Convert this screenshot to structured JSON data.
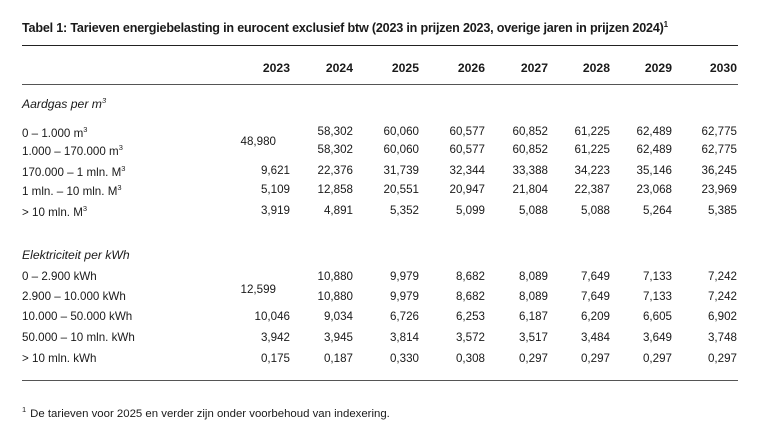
{
  "title": "Tabel 1: Tarieven energiebelasting in eurocent exclusief btw (2023 in prijzen 2023, overige jaren in prijzen 2024)",
  "title_sup": "1",
  "years": [
    "2023",
    "2024",
    "2025",
    "2026",
    "2027",
    "2028",
    "2029",
    "2030"
  ],
  "gas": {
    "heading": "Aardgas per m",
    "heading_sup": "3",
    "rows": [
      {
        "label": "0 – 1.000 m",
        "sup": "3",
        "values": [
          "",
          "58,302",
          "60,060",
          "60,577",
          "60,852",
          "61,225",
          "62,489",
          "62,775"
        ]
      },
      {
        "label": "1.000 – 170.000 m",
        "sup": "3",
        "values": [
          "",
          "58,302",
          "60,060",
          "60,577",
          "60,852",
          "61,225",
          "62,489",
          "62,775"
        ]
      },
      {
        "label": "170.000 – 1 mln. M",
        "sup": "3",
        "values": [
          "9,621",
          "22,376",
          "31,739",
          "32,344",
          "33,388",
          "34,223",
          "35,146",
          "36,245"
        ]
      },
      {
        "label": "1 mln. – 10 mln. M",
        "sup": "3",
        "values": [
          "5,109",
          "12,858",
          "20,551",
          "20,947",
          "21,804",
          "22,387",
          "23,068",
          "23,969"
        ]
      },
      {
        "label": "> 10 mln. M",
        "sup": "3",
        "values": [
          "3,919",
          "4,891",
          "5,352",
          "5,099",
          "5,088",
          "5,088",
          "5,264",
          "5,385"
        ]
      }
    ],
    "merged_2023": "48,980"
  },
  "elec": {
    "heading": "Elektriciteit per kWh",
    "rows": [
      {
        "label": "0 – 2.900 kWh",
        "values": [
          "",
          "10,880",
          "9,979",
          "8,682",
          "8,089",
          "7,649",
          "7,133",
          "7,242"
        ]
      },
      {
        "label": "2.900 – 10.000 kWh",
        "values": [
          "",
          "10,880",
          "9,979",
          "8,682",
          "8,089",
          "7,649",
          "7,133",
          "7,242"
        ]
      },
      {
        "label": "10.000 – 50.000 kWh",
        "values": [
          "10,046",
          "9,034",
          "6,726",
          "6,253",
          "6,187",
          "6,209",
          "6,605",
          "6,902"
        ]
      },
      {
        "label": "50.000 – 10 mln. kWh",
        "values": [
          "3,942",
          "3,945",
          "3,814",
          "3,572",
          "3,517",
          "3,484",
          "3,649",
          "3,748"
        ]
      },
      {
        "label": "> 10 mln. kWh",
        "values": [
          "0,175",
          "0,187",
          "0,330",
          "0,308",
          "0,297",
          "0,297",
          "0,297",
          "0,297"
        ]
      }
    ],
    "merged_2023": "12,599"
  },
  "footnote_marker": "1",
  "footnote": "De tarieven voor 2025 en verder zijn onder voorbehoud van indexering."
}
